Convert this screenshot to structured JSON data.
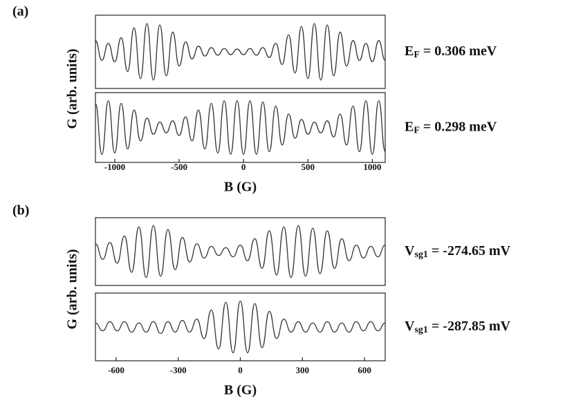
{
  "chart_data": [
    {
      "type": "line",
      "panel_label": "(a)",
      "xlabel": "B (G)",
      "ylabel": "G  (arb. units)",
      "xlim": [
        -1150,
        1100
      ],
      "xticks": [
        -1000,
        -500,
        0,
        500,
        1000
      ],
      "ylim": [
        -1.2,
        1.2
      ],
      "x": [
        -1150,
        -1100,
        -1050,
        -1000,
        -950,
        -900,
        -850,
        -800,
        -750,
        -700,
        -650,
        -600,
        -550,
        -500,
        -450,
        -400,
        -350,
        -300,
        -250,
        -200,
        -150,
        -100,
        -50,
        0,
        50,
        100,
        150,
        200,
        250,
        300,
        350,
        400,
        450,
        500,
        550,
        600,
        650,
        700,
        750,
        800,
        850,
        900,
        950,
        1000,
        1050,
        1100
      ],
      "series": [
        {
          "name": [
            "E",
            "F",
            " = 0.306 meV"
          ],
          "color": "#333333",
          "values": [
            0.4,
            -0.3,
            0.3,
            -0.35,
            0.5,
            -0.7,
            0.85,
            -0.95,
            1,
            -1,
            0.95,
            -0.85,
            0.7,
            -0.5,
            0.35,
            -0.25,
            0.2,
            -0.15,
            0.15,
            -0.12,
            0.12,
            -0.1,
            0.1,
            -0.1,
            0.12,
            -0.12,
            0.15,
            -0.2,
            0.3,
            -0.45,
            0.6,
            -0.75,
            0.9,
            -0.95,
            1,
            -1,
            0.95,
            -0.85,
            0.7,
            -0.5,
            0.4,
            -0.3,
            0.3,
            -0.35,
            0.4,
            -0.3
          ]
        },
        {
          "name": [
            "E",
            "F",
            " = 0.298 meV"
          ],
          "color": "#333333",
          "values": [
            0.9,
            -1,
            1,
            -0.95,
            0.9,
            -0.8,
            0.65,
            -0.5,
            0.35,
            -0.25,
            0.2,
            -0.2,
            0.25,
            -0.3,
            0.4,
            -0.5,
            0.65,
            -0.8,
            0.9,
            -0.95,
            1,
            -1,
            1,
            -1,
            1,
            -1,
            0.95,
            -0.9,
            0.8,
            -0.65,
            0.5,
            -0.4,
            0.3,
            -0.25,
            0.2,
            -0.2,
            0.25,
            -0.35,
            0.5,
            -0.65,
            0.8,
            -0.9,
            1,
            -1,
            1,
            -0.9
          ]
        }
      ]
    },
    {
      "type": "line",
      "panel_label": "(b)",
      "xlabel": "B (G)",
      "ylabel": "G  (arb. units)",
      "xlim": [
        -700,
        700
      ],
      "xticks": [
        -600,
        -300,
        0,
        300,
        600
      ],
      "ylim": [
        -1.2,
        1.2
      ],
      "x": [
        -700,
        -665,
        -630,
        -595,
        -560,
        -525,
        -490,
        -455,
        -420,
        -385,
        -350,
        -315,
        -280,
        -245,
        -210,
        -175,
        -140,
        -105,
        -70,
        -35,
        0,
        35,
        70,
        105,
        140,
        175,
        210,
        245,
        280,
        315,
        350,
        385,
        420,
        455,
        490,
        525,
        560,
        595,
        630,
        665,
        700
      ],
      "series": [
        {
          "name": [
            "V",
            "sg1",
            " = -274.65 mV"
          ],
          "color": "#333333",
          "values": [
            0.3,
            -0.3,
            0.35,
            -0.45,
            0.6,
            -0.8,
            0.95,
            -1,
            1,
            -0.95,
            0.85,
            -0.7,
            0.55,
            -0.4,
            0.3,
            -0.25,
            0.2,
            -0.15,
            0.15,
            -0.2,
            0.25,
            -0.35,
            0.5,
            -0.65,
            0.8,
            -0.9,
            0.95,
            -1,
            1,
            -0.95,
            0.9,
            -0.85,
            0.8,
            -0.65,
            0.5,
            -0.35,
            0.25,
            -0.25,
            0.2,
            -0.2,
            0.25
          ]
        },
        {
          "name": [
            "V",
            "sg1",
            " = -287.85 mV"
          ],
          "color": "#333333",
          "values": [
            0.15,
            -0.15,
            0.2,
            -0.15,
            0.2,
            -0.2,
            0.15,
            -0.2,
            0.2,
            -0.25,
            0.2,
            -0.2,
            0.25,
            -0.2,
            0.3,
            -0.45,
            0.65,
            -0.85,
            0.95,
            -1,
            1,
            -1,
            0.9,
            -0.8,
            0.6,
            -0.45,
            0.3,
            -0.2,
            0.2,
            -0.2,
            0.15,
            -0.2,
            0.2,
            -0.2,
            0.15,
            -0.2,
            0.2,
            -0.15,
            0.2,
            -0.15,
            0.15
          ]
        }
      ]
    }
  ]
}
